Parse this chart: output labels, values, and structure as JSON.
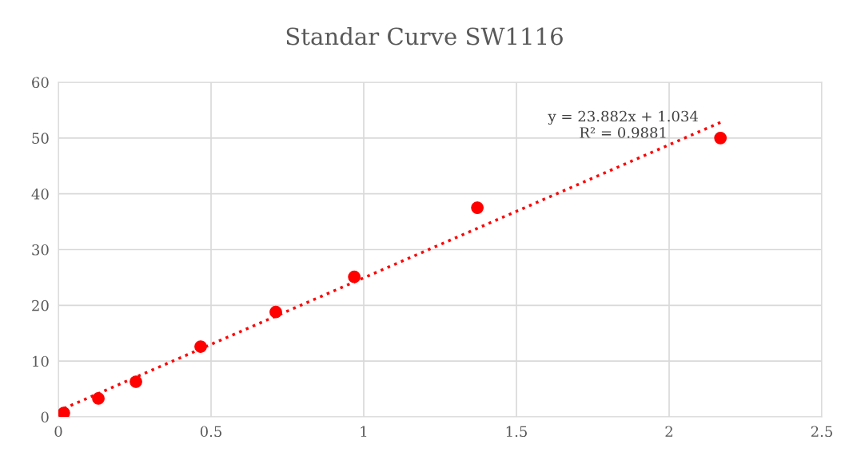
{
  "chart_data": {
    "type": "scatter",
    "title": "Standar Curve SW1116",
    "series": [
      {
        "color": "#fe0000",
        "marker": "circle",
        "x": [
          0.018,
          0.131,
          0.254,
          0.466,
          0.712,
          0.969,
          1.372,
          2.168
        ],
        "values": [
          0.7,
          3.3,
          6.3,
          12.6,
          18.8,
          25.1,
          37.5,
          50.0
        ]
      },
      {
        "type": "line",
        "color": "#fe0000",
        "line_style": "dotted",
        "marker": "none",
        "x": [
          0.018,
          2.168
        ],
        "values": [
          1.5,
          52.8
        ]
      }
    ],
    "annotations": [
      "y = 23.882x + 1.034\nR² = 0.9881"
    ],
    "xlim": [
      0,
      2.5
    ],
    "xticks": [
      0,
      0.5,
      1,
      1.5,
      2,
      2.5
    ],
    "ylim": [
      0,
      60
    ],
    "yticks": [
      0,
      10,
      20,
      30,
      40,
      50,
      60
    ],
    "grid": true,
    "legend": false
  }
}
